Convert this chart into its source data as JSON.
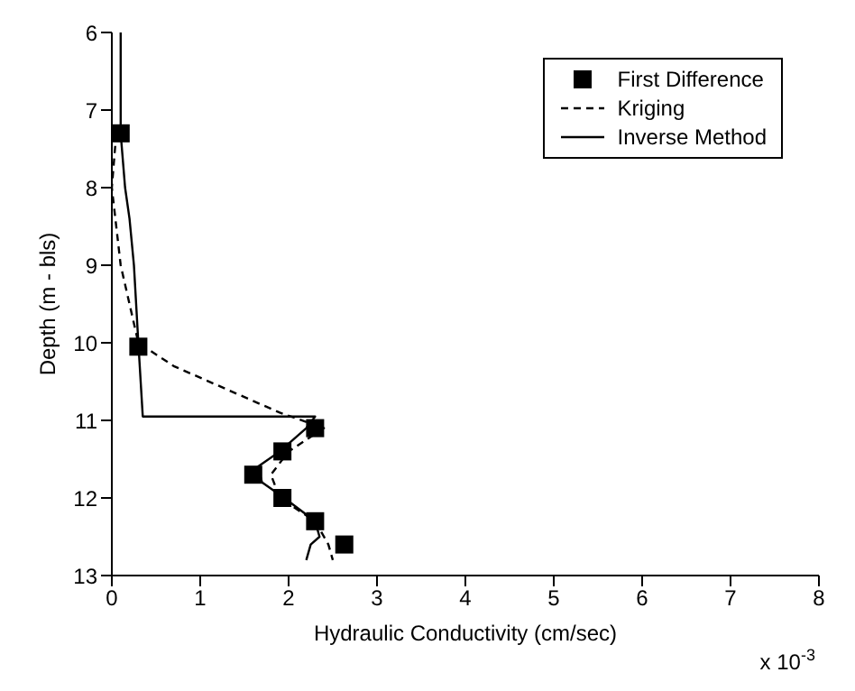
{
  "chart_data": {
    "type": "line",
    "xlabel": "Hydraulic Conductivity (cm/sec)",
    "ylabel": "Depth (m - bls)",
    "xlim": [
      0,
      8
    ],
    "xticks": [
      0,
      1,
      2,
      3,
      4,
      5,
      6,
      7,
      8
    ],
    "ylim": [
      13,
      6
    ],
    "yticks": [
      6,
      7,
      8,
      9,
      10,
      11,
      12,
      13
    ],
    "grid": false,
    "legend": "top right",
    "annotations": [
      "x 10$^{-3}$"
    ],
    "series": [
      {
        "name": "First Difference",
        "type": "scatter",
        "marker": "square",
        "color": "#000000",
        "x": [
          0.1,
          0.3,
          2.3,
          1.93,
          1.6,
          1.93,
          2.3,
          2.63
        ],
        "values": [
          7.3,
          10.05,
          11.1,
          11.4,
          11.7,
          12.0,
          12.3,
          12.6
        ]
      },
      {
        "name": "Kriging",
        "type": "line",
        "line_style": "dashed",
        "marker": "none",
        "color": "#000000",
        "x": [
          0.05,
          0.0,
          0.1,
          0.3,
          0.7,
          1.3,
          1.9,
          2.4,
          2.0,
          1.8,
          1.9,
          2.3,
          2.45,
          2.5
        ],
        "values": [
          7.3,
          8.0,
          9.0,
          10.0,
          10.3,
          10.6,
          10.9,
          11.1,
          11.4,
          11.7,
          12.0,
          12.3,
          12.6,
          12.8
        ]
      },
      {
        "name": "Inverse Method",
        "type": "line",
        "line_style": "solid",
        "marker": "none",
        "color": "#000000",
        "x": [
          0.1,
          0.1,
          0.15,
          0.2,
          0.25,
          0.3,
          0.35,
          2.3,
          2.2,
          1.9,
          1.65,
          1.7,
          1.95,
          2.3,
          2.35,
          2.25,
          2.2
        ],
        "values": [
          6.0,
          7.3,
          8.0,
          8.4,
          9.0,
          10.0,
          10.95,
          10.95,
          11.1,
          11.4,
          11.6,
          11.8,
          12.0,
          12.3,
          12.5,
          12.6,
          12.8
        ]
      }
    ]
  }
}
